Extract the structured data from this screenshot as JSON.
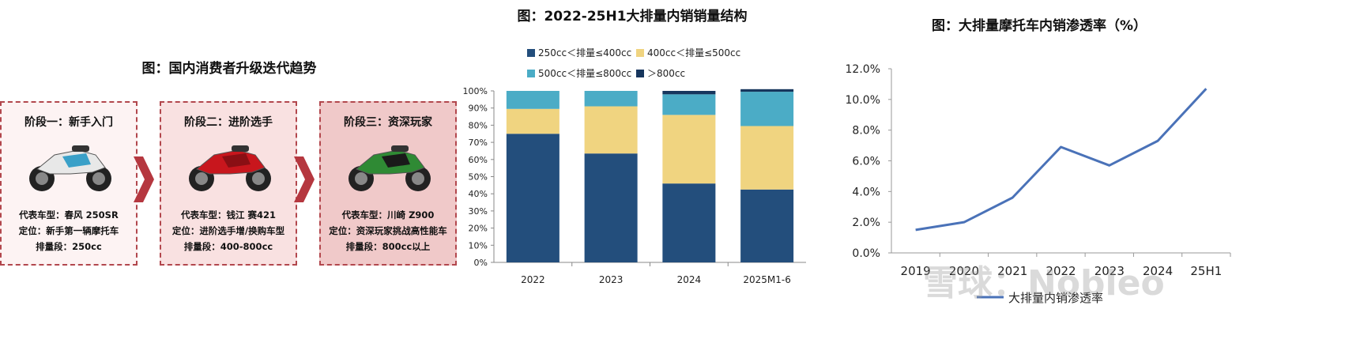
{
  "left_panel": {
    "title": "图：国内消费者升级迭代趋势",
    "stages": [
      {
        "name": "阶段一：新手入门",
        "model": "代表车型：春风 250SR",
        "position": "定位：新手第一辆摩托车",
        "displacement": "排量段：250cc",
        "bg": "#fdf3f3",
        "bike_color": "#e8e8e8",
        "accent": "#3aa0c8"
      },
      {
        "name": "阶段二：进阶选手",
        "model": "代表车型：钱江 赛421",
        "position": "定位：进阶选手增/换购车型",
        "displacement": "排量段：400-800cc",
        "bg": "#f9e1e1",
        "bike_color": "#c8161d",
        "accent": "#8a0f14"
      },
      {
        "name": "阶段三：资深玩家",
        "model": "代表车型：川崎 Z900",
        "position": "定位：资深玩家挑战高性能车",
        "displacement": "排量段：800cc以上",
        "bg": "#f0c9c9",
        "bike_color": "#2f8a34",
        "accent": "#1a1a1a"
      }
    ],
    "arrow_color": "#b5373f"
  },
  "chart_data": [
    {
      "type": "bar",
      "stacked": true,
      "title": "图：2022-25H1大排量内销销量结构",
      "categories": [
        "2022",
        "2023",
        "2024",
        "2025M1-6"
      ],
      "series": [
        {
          "name": "250cc＜排量≤400cc",
          "color": "#234e7c",
          "values": [
            75,
            63.5,
            46,
            42.5
          ]
        },
        {
          "name": "400cc＜排量≤500cc",
          "color": "#f0d480",
          "values": [
            14.5,
            27.5,
            40,
            37
          ]
        },
        {
          "name": "500cc＜排量≤800cc",
          "color": "#4bacc6",
          "values": [
            10.5,
            9,
            12,
            20
          ]
        },
        {
          "name": "＞800cc",
          "color": "#17365d",
          "values": [
            0,
            0,
            2,
            1.5
          ]
        }
      ],
      "yticks": [
        "0%",
        "10%",
        "20%",
        "30%",
        "40%",
        "50%",
        "60%",
        "70%",
        "80%",
        "90%",
        "100%"
      ],
      "ylim": [
        0,
        100
      ],
      "legend": "top"
    },
    {
      "type": "line",
      "title": "图：大排量摩托车内销渗透率（%）",
      "categories": [
        "2019",
        "2020",
        "2021",
        "2022",
        "2023",
        "2024",
        "25H1"
      ],
      "series": [
        {
          "name": "大排量内销渗透率",
          "color": "#4a72b8",
          "values": [
            1.5,
            2.0,
            3.6,
            6.9,
            5.7,
            7.3,
            10.7
          ]
        }
      ],
      "yticks": [
        "0.0%",
        "2.0%",
        "4.0%",
        "6.0%",
        "8.0%",
        "10.0%",
        "12.0%"
      ],
      "ylim": [
        0,
        12
      ],
      "legend": "bottom"
    }
  ],
  "watermark": "雪球：Nobleo"
}
